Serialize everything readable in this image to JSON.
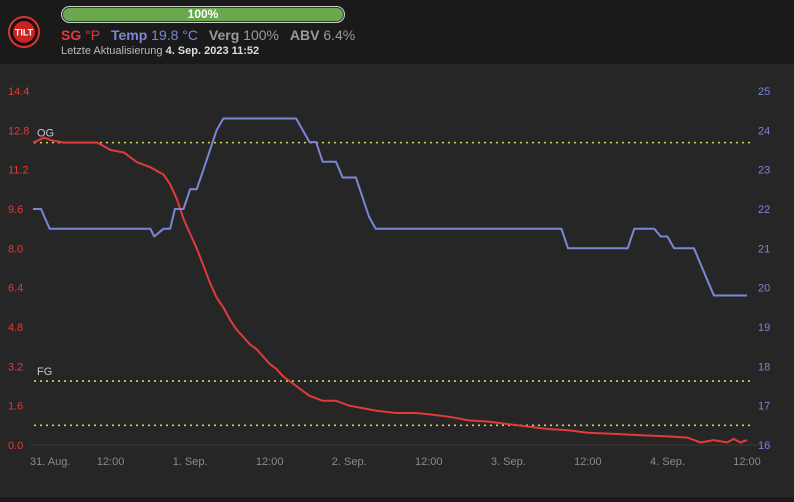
{
  "header": {
    "progress_label": "100%",
    "progress_fraction": 1.0,
    "sg_label": "SG",
    "sg_unit": "°P",
    "temp_label": "Temp",
    "temp_value": "19.8 °C",
    "verg_label": "Verg",
    "verg_value": "100%",
    "abv_label": "ABV",
    "abv_value": "6.4%",
    "updated_label": "Letzte Aktualisierung",
    "updated_value": "4. Sep. 2023 11:52",
    "logo_text": "TILT"
  },
  "colors": {
    "sg": "#e03b3b",
    "temp": "#7b86d6",
    "reference": "#d8d35a",
    "progress": "#6aa84f"
  },
  "chart_data": {
    "type": "line",
    "x_ticks": [
      "31. Aug.",
      "12:00",
      "1. Sep.",
      "12:00",
      "2. Sep.",
      "12:00",
      "3. Sep.",
      "12:00",
      "4. Sep.",
      "12:00"
    ],
    "x_tick_hours": [
      0,
      12,
      24,
      36,
      48,
      60,
      72,
      84,
      96,
      108
    ],
    "xlim_hours": [
      0.3,
      108
    ],
    "y_left_ticks": [
      "14.4",
      "12.8",
      "11.2",
      "9.6",
      "8.0",
      "6.4",
      "4.8",
      "3.2",
      "1.6",
      "0.0"
    ],
    "y_left_lim": [
      0,
      14.4
    ],
    "y_right_ticks": [
      "25",
      "24",
      "23",
      "22",
      "21",
      "20",
      "19",
      "18",
      "17",
      "16"
    ],
    "y_right_lim": [
      16,
      25
    ],
    "reference_lines": [
      {
        "label": "OG",
        "value": 12.3
      },
      {
        "label": "FG",
        "value": 2.6
      },
      {
        "label": "",
        "value": 0.8
      }
    ],
    "series": [
      {
        "name": "SG",
        "axis": "left",
        "points": [
          [
            0.3,
            12.3
          ],
          [
            2,
            12.5
          ],
          [
            3,
            12.4
          ],
          [
            5,
            12.3
          ],
          [
            10,
            12.3
          ],
          [
            12,
            12.0
          ],
          [
            14,
            11.9
          ],
          [
            16,
            11.5
          ],
          [
            18,
            11.3
          ],
          [
            20,
            11.0
          ],
          [
            21,
            10.6
          ],
          [
            22,
            10.0
          ],
          [
            23,
            9.2
          ],
          [
            24,
            8.6
          ],
          [
            25,
            8.0
          ],
          [
            26,
            7.3
          ],
          [
            27,
            6.6
          ],
          [
            28,
            6.0
          ],
          [
            29,
            5.6
          ],
          [
            30,
            5.1
          ],
          [
            31,
            4.7
          ],
          [
            32,
            4.4
          ],
          [
            33,
            4.1
          ],
          [
            34,
            3.9
          ],
          [
            35,
            3.6
          ],
          [
            36,
            3.3
          ],
          [
            37,
            3.1
          ],
          [
            38,
            2.8
          ],
          [
            39,
            2.6
          ],
          [
            40,
            2.4
          ],
          [
            41,
            2.2
          ],
          [
            42,
            2.0
          ],
          [
            43,
            1.9
          ],
          [
            44,
            1.8
          ],
          [
            46,
            1.8
          ],
          [
            48,
            1.6
          ],
          [
            50,
            1.5
          ],
          [
            52,
            1.4
          ],
          [
            55,
            1.3
          ],
          [
            58,
            1.3
          ],
          [
            60,
            1.25
          ],
          [
            63,
            1.15
          ],
          [
            66,
            1.0
          ],
          [
            69,
            0.95
          ],
          [
            72,
            0.85
          ],
          [
            75,
            0.75
          ],
          [
            78,
            0.65
          ],
          [
            81,
            0.6
          ],
          [
            84,
            0.5
          ],
          [
            88,
            0.45
          ],
          [
            92,
            0.4
          ],
          [
            96,
            0.35
          ],
          [
            99,
            0.3
          ],
          [
            101,
            0.1
          ],
          [
            103,
            0.2
          ],
          [
            105,
            0.1
          ],
          [
            106,
            0.25
          ],
          [
            107,
            0.1
          ],
          [
            108,
            0.2
          ]
        ]
      },
      {
        "name": "Temp",
        "axis": "right",
        "points": [
          [
            0.3,
            22.0
          ],
          [
            1.5,
            22.0
          ],
          [
            2.8,
            21.5
          ],
          [
            18,
            21.5
          ],
          [
            18.6,
            21.3
          ],
          [
            20,
            21.5
          ],
          [
            21,
            21.5
          ],
          [
            21.7,
            22.0
          ],
          [
            23,
            22.0
          ],
          [
            24,
            22.5
          ],
          [
            25,
            22.5
          ],
          [
            26,
            23.0
          ],
          [
            27,
            23.5
          ],
          [
            28,
            24.0
          ],
          [
            29,
            24.3
          ],
          [
            40,
            24.3
          ],
          [
            41,
            24.0
          ],
          [
            42,
            23.7
          ],
          [
            43,
            23.7
          ],
          [
            44,
            23.2
          ],
          [
            46,
            23.2
          ],
          [
            47,
            22.8
          ],
          [
            49,
            22.8
          ],
          [
            50,
            22.3
          ],
          [
            51,
            21.8
          ],
          [
            52,
            21.5
          ],
          [
            80,
            21.5
          ],
          [
            81,
            21.0
          ],
          [
            90,
            21.0
          ],
          [
            91,
            21.5
          ],
          [
            94,
            21.5
          ],
          [
            95,
            21.3
          ],
          [
            96,
            21.3
          ],
          [
            97,
            21.0
          ],
          [
            100,
            21.0
          ],
          [
            101,
            20.6
          ],
          [
            102,
            20.2
          ],
          [
            103,
            19.8
          ],
          [
            108,
            19.8
          ]
        ]
      }
    ]
  }
}
